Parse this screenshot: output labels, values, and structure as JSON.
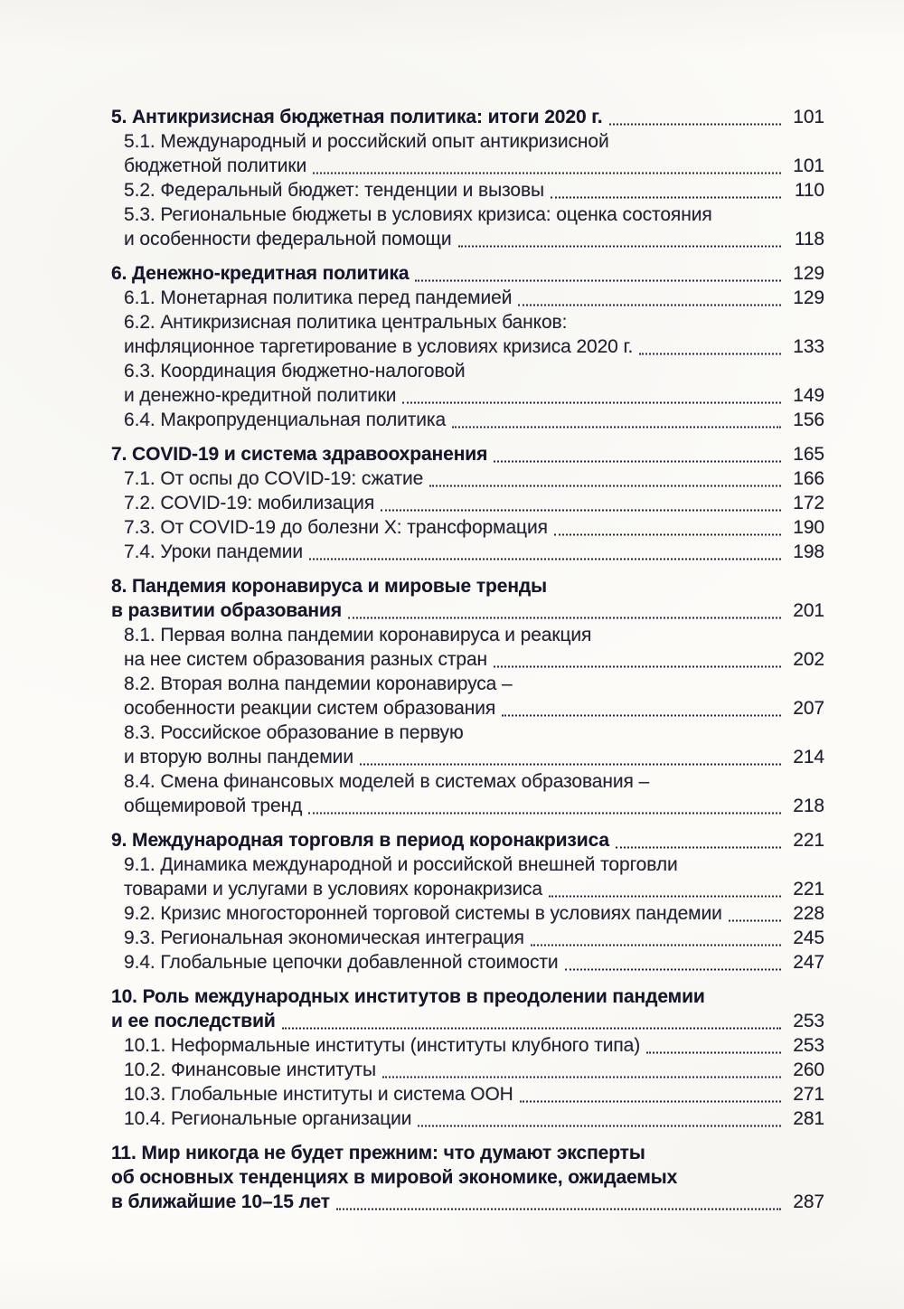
{
  "page": {
    "kind": "scanned-book-table-of-contents",
    "language": "ru",
    "background_color": "#fcfbf8",
    "text_color": "#20202f",
    "leader_dot_color": "#262639"
  },
  "toc": {
    "rows": [
      {
        "text": "5. Антикризисная бюджетная политика: итоги 2020 г.",
        "bold": true,
        "indent": 0,
        "page": "101",
        "gap": false
      },
      {
        "text": "5.1. Международный и российский опыт антикризисной",
        "bold": false,
        "indent": 1,
        "page": null,
        "gap": false
      },
      {
        "text": "бюджетной политики",
        "bold": false,
        "indent": 1,
        "page": "101",
        "gap": false
      },
      {
        "text": "5.2. Федеральный бюджет: тенденции и вызовы",
        "bold": false,
        "indent": 1,
        "page": "110",
        "gap": false
      },
      {
        "text": "5.3. Региональные бюджеты в условиях кризиса: оценка состояния",
        "bold": false,
        "indent": 1,
        "page": null,
        "gap": false
      },
      {
        "text": "и особенности федеральной помощи",
        "bold": false,
        "indent": 1,
        "page": "118",
        "gap": false
      },
      {
        "text": "6. Денежно-кредитная политика",
        "bold": true,
        "indent": 0,
        "page": "129",
        "gap": true
      },
      {
        "text": "6.1. Монетарная политика перед пандемией",
        "bold": false,
        "indent": 1,
        "page": "129",
        "gap": false
      },
      {
        "text": "6.2. Антикризисная политика центральных банков:",
        "bold": false,
        "indent": 1,
        "page": null,
        "gap": false
      },
      {
        "text": "инфляционное таргетирование в условиях кризиса 2020 г.",
        "bold": false,
        "indent": 1,
        "page": "133",
        "gap": false
      },
      {
        "text": "6.3. Координация бюджетно-налоговой",
        "bold": false,
        "indent": 1,
        "page": null,
        "gap": false
      },
      {
        "text": "и денежно-кредитной политики",
        "bold": false,
        "indent": 1,
        "page": "149",
        "gap": false
      },
      {
        "text": "6.4. Макропруденциальная политика",
        "bold": false,
        "indent": 1,
        "page": "156",
        "gap": false
      },
      {
        "text": "7. COVID-19 и система здравоохранения",
        "bold": true,
        "indent": 0,
        "page": "165",
        "gap": true
      },
      {
        "text": "7.1. От оспы до COVID-19: сжатие",
        "bold": false,
        "indent": 1,
        "page": "166",
        "gap": false
      },
      {
        "text": "7.2. COVID-19: мобилизация",
        "bold": false,
        "indent": 1,
        "page": "172",
        "gap": false
      },
      {
        "text": "7.3. От COVID-19 до болезни Х: трансформация",
        "bold": false,
        "indent": 1,
        "page": "190",
        "gap": false
      },
      {
        "text": "7.4. Уроки пандемии",
        "bold": false,
        "indent": 1,
        "page": "198",
        "gap": false
      },
      {
        "text": "8. Пандемия коронавируса и мировые тренды",
        "bold": true,
        "indent": 0,
        "page": null,
        "gap": true
      },
      {
        "text": "в развитии образования",
        "bold": true,
        "indent": 0,
        "page": "201",
        "gap": false
      },
      {
        "text": "8.1. Первая волна пандемии коронавируса и реакция",
        "bold": false,
        "indent": 1,
        "page": null,
        "gap": false
      },
      {
        "text": "на нее систем образования разных стран",
        "bold": false,
        "indent": 1,
        "page": "202",
        "gap": false
      },
      {
        "text": "8.2. Вторая волна пандемии коронавируса –",
        "bold": false,
        "indent": 1,
        "page": null,
        "gap": false
      },
      {
        "text": "особенности реакции систем образования",
        "bold": false,
        "indent": 1,
        "page": "207",
        "gap": false
      },
      {
        "text": "8.3. Российское образование в первую",
        "bold": false,
        "indent": 1,
        "page": null,
        "gap": false
      },
      {
        "text": "и вторую волны пандемии",
        "bold": false,
        "indent": 1,
        "page": "214",
        "gap": false
      },
      {
        "text": "8.4. Смена финансовых моделей в системах образования –",
        "bold": false,
        "indent": 1,
        "page": null,
        "gap": false
      },
      {
        "text": "общемировой тренд",
        "bold": false,
        "indent": 1,
        "page": "218",
        "gap": false
      },
      {
        "text": "9. Международная торговля в период коронакризиса",
        "bold": true,
        "indent": 0,
        "page": "221",
        "gap": true
      },
      {
        "text": "9.1. Динамика международной и российской внешней торговли",
        "bold": false,
        "indent": 1,
        "page": null,
        "gap": false
      },
      {
        "text": "товарами и услугами в условиях коронакризиса",
        "bold": false,
        "indent": 1,
        "page": "221",
        "gap": false
      },
      {
        "text": "9.2. Кризис многосторонней торговой системы в условиях пандемии",
        "bold": false,
        "indent": 1,
        "page": "228",
        "gap": false
      },
      {
        "text": "9.3. Региональная экономическая интеграция",
        "bold": false,
        "indent": 1,
        "page": "245",
        "gap": false
      },
      {
        "text": "9.4. Глобальные цепочки добавленной стоимости",
        "bold": false,
        "indent": 1,
        "page": "247",
        "gap": false
      },
      {
        "text": "10. Роль международных институтов в преодолении пандемии",
        "bold": true,
        "indent": 0,
        "page": null,
        "gap": true
      },
      {
        "text": "и ее последствий",
        "bold": true,
        "indent": 0,
        "page": "253",
        "gap": false
      },
      {
        "text": "10.1. Неформальные институты (институты клубного типа)",
        "bold": false,
        "indent": 1,
        "page": "253",
        "gap": false
      },
      {
        "text": "10.2. Финансовые институты",
        "bold": false,
        "indent": 1,
        "page": "260",
        "gap": false
      },
      {
        "text": "10.3. Глобальные институты и система ООН",
        "bold": false,
        "indent": 1,
        "page": "271",
        "gap": false
      },
      {
        "text": "10.4. Региональные организации",
        "bold": false,
        "indent": 1,
        "page": "281",
        "gap": false
      },
      {
        "text": "11. Мир никогда не будет прежним: что думают эксперты",
        "bold": true,
        "indent": 0,
        "page": null,
        "gap": true
      },
      {
        "text": "об основных тенденциях в мировой экономике, ожидаемых",
        "bold": true,
        "indent": 0,
        "page": null,
        "gap": false
      },
      {
        "text": "в ближайшие 10–15 лет",
        "bold": true,
        "indent": 0,
        "page": "287",
        "gap": false
      }
    ]
  }
}
